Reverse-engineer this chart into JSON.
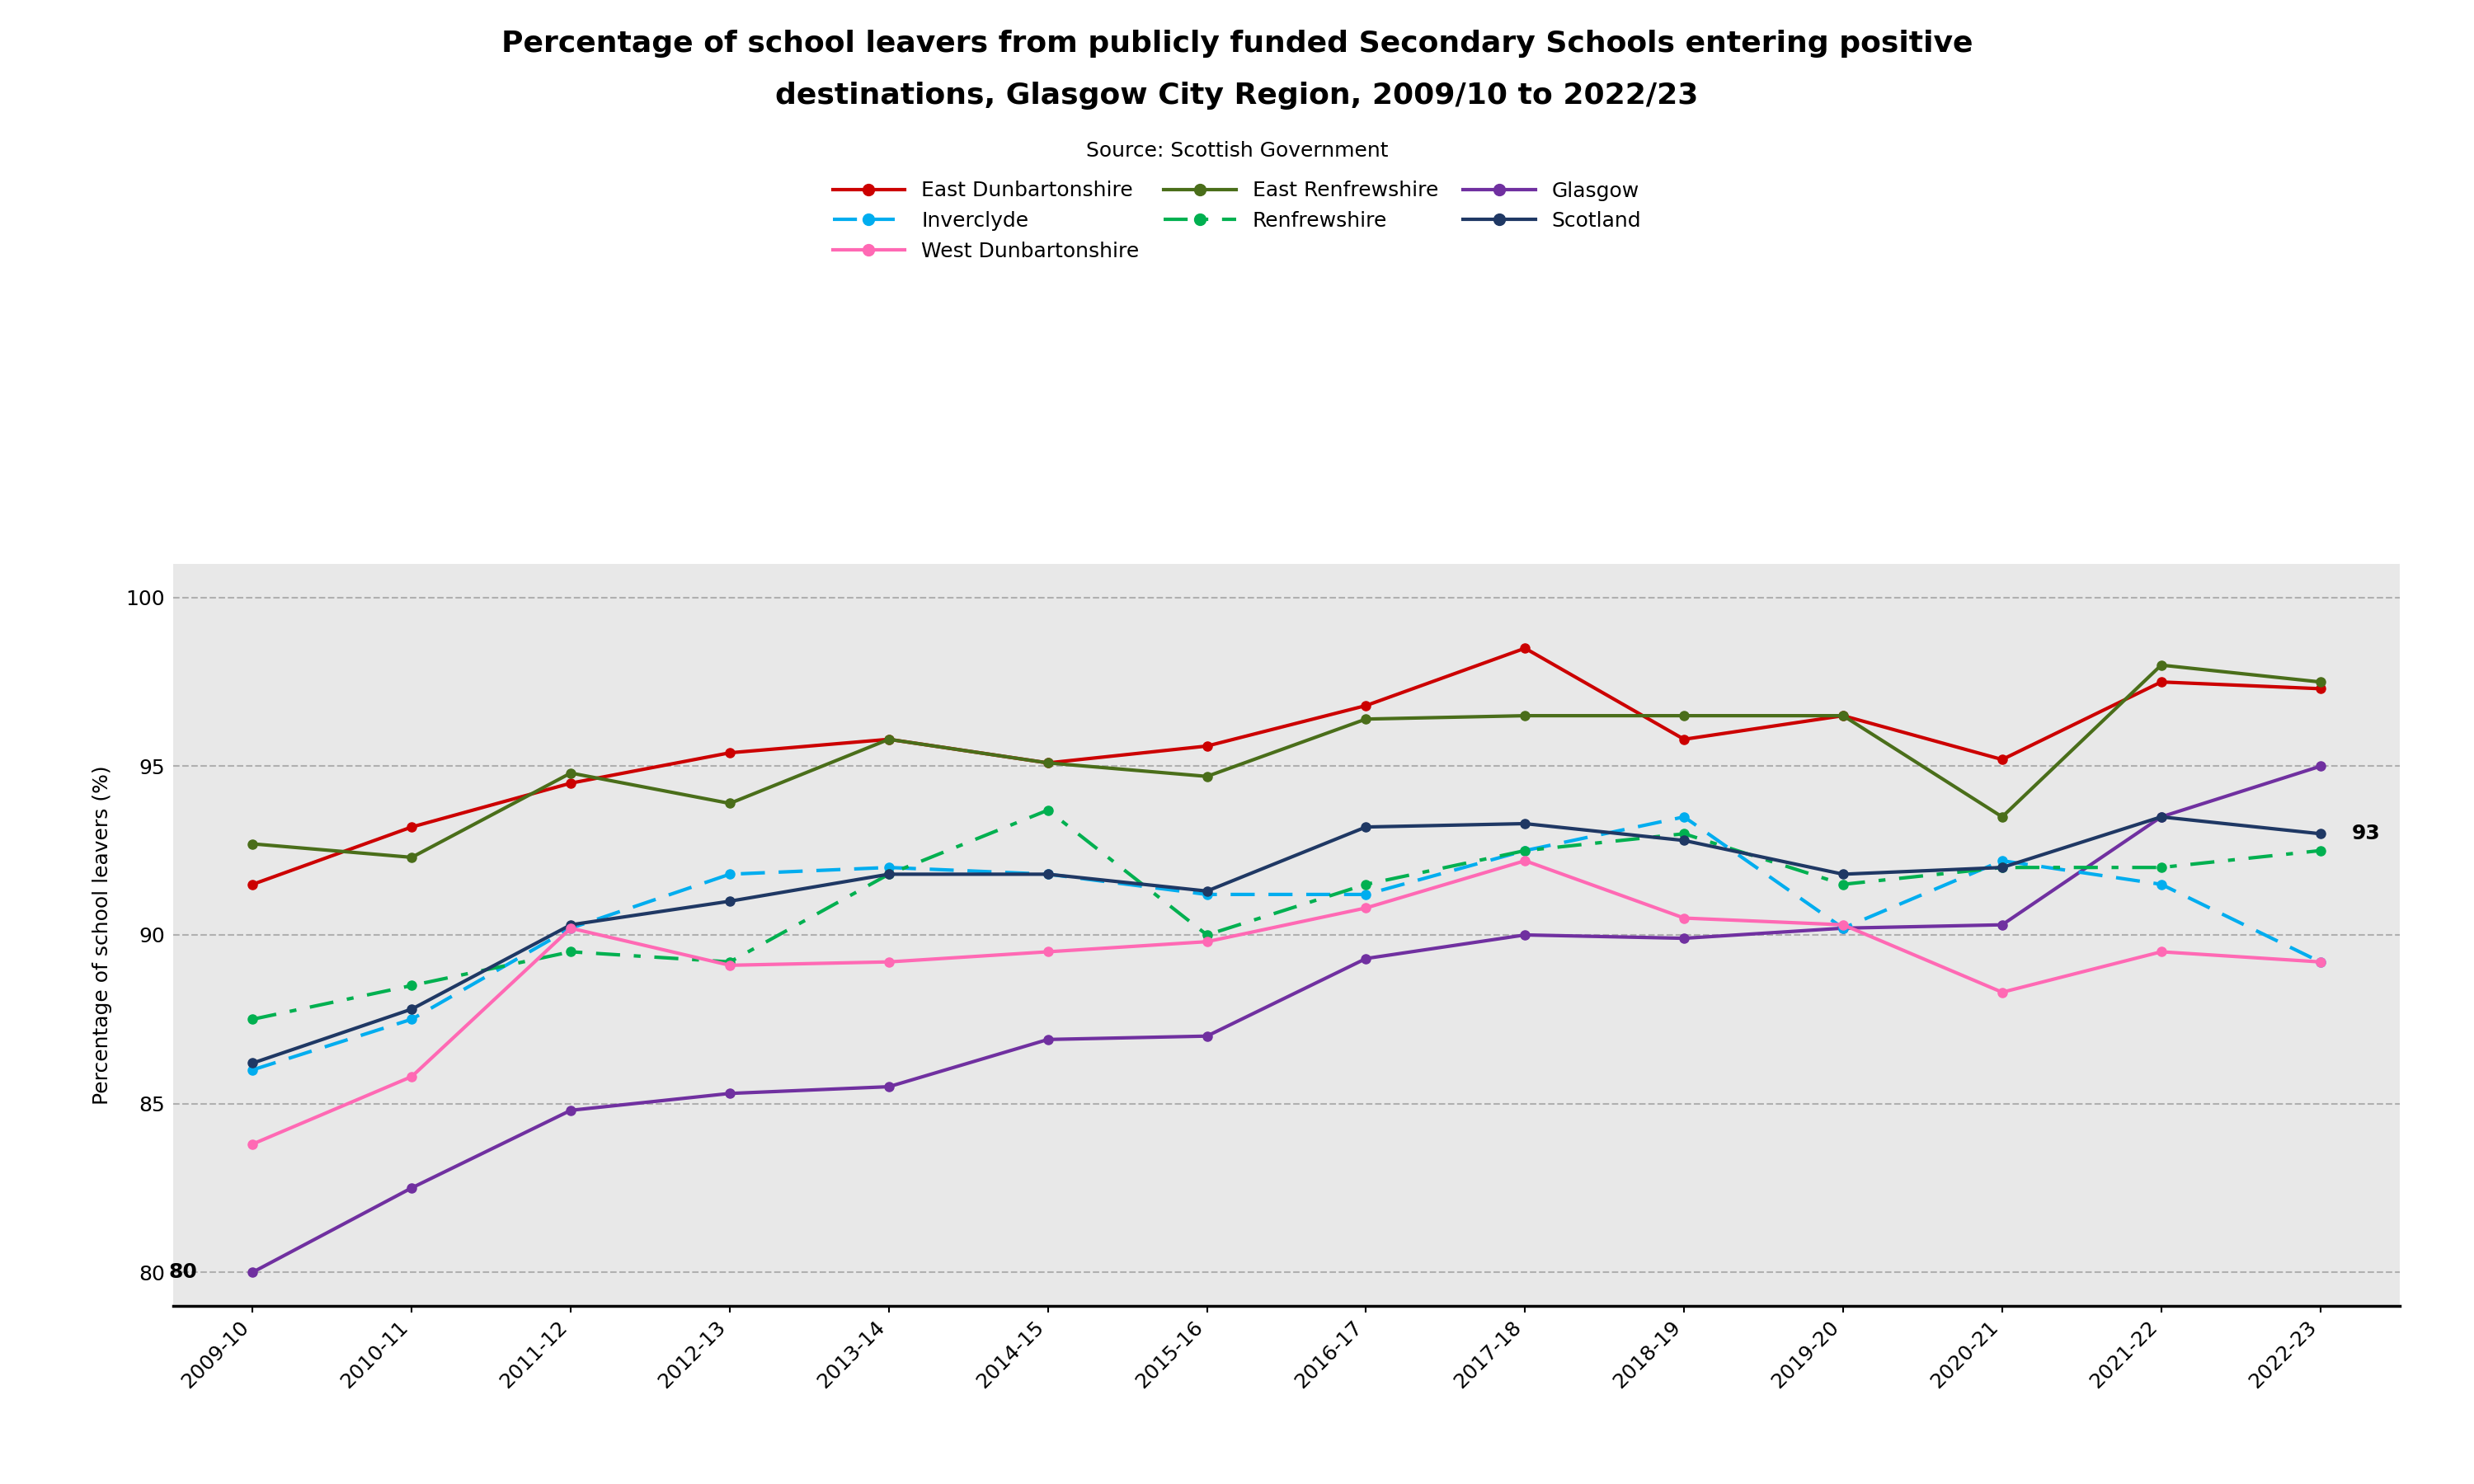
{
  "title_line1": "Percentage of school leavers from publicly funded Secondary Schools entering positive",
  "title_line2": "destinations, Glasgow City Region, 2009/10 to 2022/23",
  "source": "Source: Scottish Government",
  "ylabel": "Percentage of school leavers (%)",
  "years": [
    "2009-10",
    "2010-11",
    "2011-12",
    "2012-13",
    "2013-14",
    "2014-15",
    "2015-16",
    "2016-17",
    "2017-18",
    "2018-19",
    "2019-20",
    "2020-21",
    "2021-22",
    "2022-23"
  ],
  "east_dunbartonshire": [
    91.5,
    93.2,
    94.5,
    95.4,
    95.8,
    95.1,
    95.6,
    96.8,
    98.5,
    95.8,
    96.5,
    95.2,
    97.5,
    97.3
  ],
  "east_renfrewshire": [
    92.7,
    92.3,
    94.8,
    93.9,
    95.8,
    95.1,
    94.7,
    96.4,
    96.5,
    96.5,
    96.5,
    93.5,
    98.0,
    97.5
  ],
  "glasgow": [
    80.0,
    82.5,
    84.8,
    85.3,
    85.5,
    86.9,
    87.0,
    89.3,
    90.0,
    89.9,
    90.2,
    90.3,
    93.5,
    95.0
  ],
  "inverclyde": [
    86.0,
    87.5,
    90.2,
    91.8,
    92.0,
    91.8,
    91.2,
    91.2,
    92.5,
    93.5,
    90.2,
    92.2,
    91.5,
    89.2
  ],
  "renfrewshire": [
    87.5,
    88.5,
    89.5,
    89.2,
    91.8,
    93.7,
    90.0,
    91.5,
    92.5,
    93.0,
    91.5,
    92.0,
    92.0,
    92.5
  ],
  "scotland": [
    86.2,
    87.8,
    90.3,
    91.0,
    91.8,
    91.8,
    91.3,
    93.2,
    93.3,
    92.8,
    91.8,
    92.0,
    93.5,
    93.0
  ],
  "west_dunbartonshire": [
    83.8,
    85.8,
    90.2,
    89.1,
    89.2,
    89.5,
    89.8,
    90.8,
    92.2,
    90.5,
    90.3,
    88.3,
    89.5,
    89.2
  ],
  "color_east_dun": "#cc0000",
  "color_east_ren": "#4a6e1a",
  "color_glasgow": "#7030a0",
  "color_inverclyde": "#00adef",
  "color_renfrewshire": "#00b050",
  "color_scotland": "#1f3864",
  "color_west_dun": "#ff69b4",
  "ylim_min": 79,
  "ylim_max": 101,
  "yticks": [
    80,
    85,
    90,
    95,
    100
  ],
  "bg_color": "#e8e8e8",
  "grid_color": "#b0b0b0",
  "title_fontsize": 26,
  "source_fontsize": 18,
  "ylabel_fontsize": 18,
  "tick_fontsize": 18,
  "legend_fontsize": 18,
  "annot_fontsize": 18
}
